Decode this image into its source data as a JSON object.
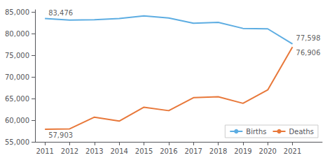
{
  "chart_data": {
    "type": "line",
    "x": [
      2011,
      2012,
      2013,
      2014,
      2015,
      2016,
      2017,
      2018,
      2019,
      2020,
      2021
    ],
    "series": [
      {
        "name": "Births",
        "color": "#5dade2",
        "values": [
          83476,
          83100,
          83200,
          83500,
          84100,
          83600,
          82400,
          82600,
          81200,
          81100,
          77598
        ]
      },
      {
        "name": "Deaths",
        "color": "#e8783a",
        "values": [
          57903,
          58000,
          60700,
          59800,
          63000,
          62200,
          65200,
          65400,
          63900,
          67000,
          76906
        ]
      }
    ],
    "xlim": [
      2010.6,
      2022.2
    ],
    "xticks": [
      2011,
      2012,
      2013,
      2014,
      2015,
      2016,
      2017,
      2018,
      2019,
      2020,
      2021
    ],
    "ylim": [
      55000,
      85500
    ],
    "yticks": [
      {
        "value": 55000,
        "label": "55,000"
      },
      {
        "value": 60000,
        "label": "60,000"
      },
      {
        "value": 65000,
        "label": "65,000"
      },
      {
        "value": 70000,
        "label": "70,000"
      },
      {
        "value": 75000,
        "label": "75,000"
      },
      {
        "value": 80000,
        "label": "80,000"
      },
      {
        "value": 85000,
        "label": "85,000"
      }
    ],
    "annotations": [
      {
        "x": 2011,
        "y": 83476,
        "label": "83,476"
      },
      {
        "x": 2021,
        "y": 77598,
        "label": "77,598"
      },
      {
        "x": 2011,
        "y": 57903,
        "label": "57,903"
      },
      {
        "x": 2021,
        "y": 76906,
        "label": "76,906"
      }
    ],
    "grid": false,
    "legend": "lower right"
  }
}
